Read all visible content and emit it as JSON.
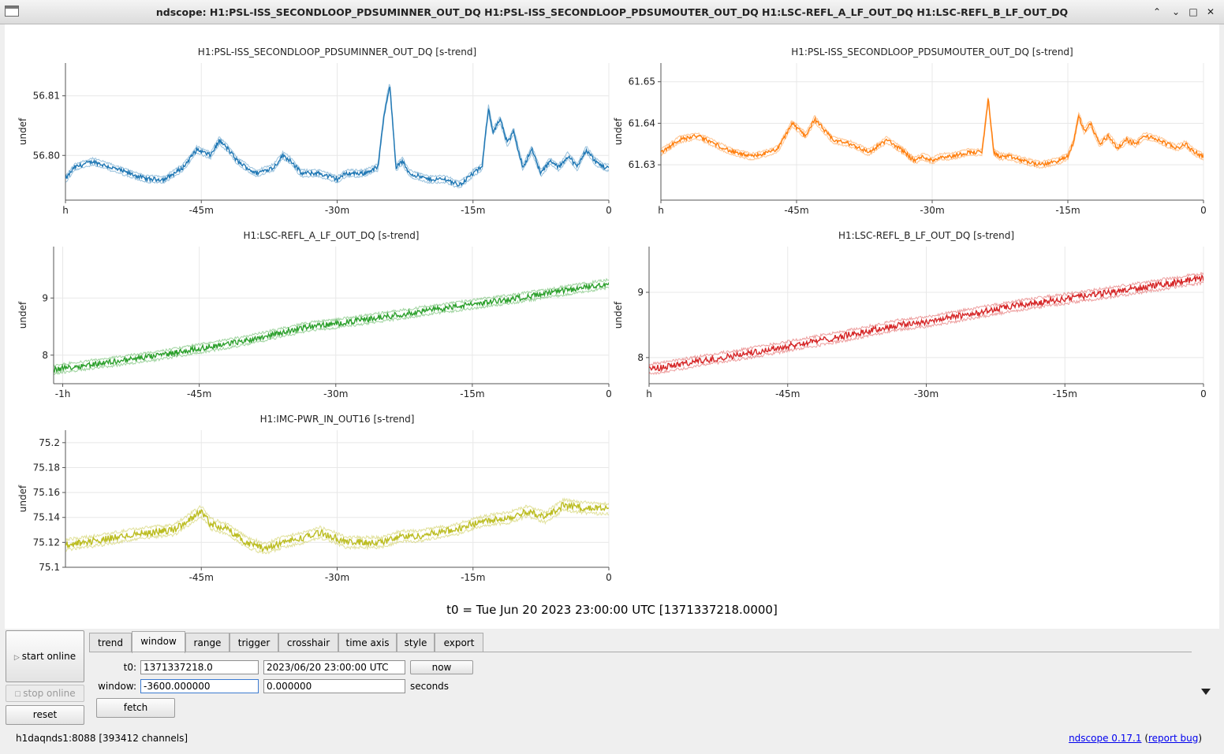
{
  "window": {
    "title": "ndscope: H1:PSL-ISS_SECONDLOOP_PDSUMINNER_OUT_DQ H1:PSL-ISS_SECONDLOOP_PDSUMOUTER_OUT_DQ H1:LSC-REFL_A_LF_OUT_DQ H1:LSC-REFL_B_LF_OUT_DQ",
    "buttons": {
      "minimize": "⌃",
      "restore": "⌄",
      "maximize": "□",
      "close": "✕"
    }
  },
  "t0_label": "t0 = Tue Jun 20 2023 23:00:00 UTC [1371337218.0000]",
  "controls": {
    "start_online": "start online",
    "stop_online": "stop online",
    "reset": "reset",
    "tabs": [
      "trend",
      "window",
      "range",
      "trigger",
      "crosshair",
      "time axis",
      "style",
      "export"
    ],
    "active_tab": "window",
    "t0_label": "t0:",
    "t0_gps": "1371337218.0",
    "t0_utc": "2023/06/20 23:00:00 UTC",
    "now": "now",
    "window_label": "window:",
    "window_start": "-3600.000000",
    "window_end": "0.000000",
    "seconds": "seconds",
    "fetch": "fetch"
  },
  "status": {
    "server": "h1daqnds1:8088  [393412 channels]",
    "version": "ndscope 0.17.1",
    "report_open": "(",
    "report_bug": "report bug",
    "report_close": ")"
  },
  "chart_data": [
    {
      "type": "line",
      "title": "H1:PSL-ISS_SECONDLOOP_PDSUMINNER_OUT_DQ [s-trend]",
      "ylabel": "undef",
      "color": "#1f77b4",
      "x_ticks": [
        {
          "v": -60,
          "label": "h"
        },
        {
          "v": -45,
          "label": "-45m"
        },
        {
          "v": -30,
          "label": "-30m"
        },
        {
          "v": -15,
          "label": "-15m"
        },
        {
          "v": 0,
          "label": "0"
        }
      ],
      "xlim": [
        -60,
        0
      ],
      "y_ticks": [
        56.8,
        56.81
      ],
      "y_tick_labels": [
        "56.80",
        "56.81"
      ],
      "ylim": [
        56.7925,
        56.8155
      ],
      "x": [
        -60,
        -59,
        -57,
        -55,
        -53,
        -51,
        -49,
        -47,
        -45.5,
        -44,
        -43,
        -42,
        -41,
        -39,
        -37,
        -36,
        -35,
        -34,
        -32,
        -30,
        -29,
        -27,
        -25.5,
        -24.8,
        -24.2,
        -23.5,
        -22.8,
        -22,
        -20,
        -18,
        -16.5,
        -15,
        -14,
        -13.3,
        -12.8,
        -12,
        -11.2,
        -10.5,
        -9.5,
        -8.5,
        -7.5,
        -6.5,
        -5.5,
        -4.5,
        -3.5,
        -2.5,
        -1.5,
        -0.5,
        0
      ],
      "y": [
        56.796,
        56.798,
        56.799,
        56.798,
        56.797,
        56.796,
        56.796,
        56.798,
        56.801,
        56.8,
        56.8025,
        56.801,
        56.799,
        56.797,
        56.798,
        56.8,
        56.799,
        56.797,
        56.797,
        56.796,
        56.797,
        56.797,
        56.798,
        56.807,
        56.812,
        56.798,
        56.799,
        56.797,
        56.796,
        56.796,
        56.795,
        56.797,
        56.798,
        56.808,
        56.804,
        56.806,
        56.802,
        56.804,
        56.798,
        56.801,
        56.797,
        56.799,
        56.798,
        56.8,
        56.798,
        56.801,
        56.799,
        56.798,
        56.798
      ],
      "noise": 0.0006
    },
    {
      "type": "line",
      "title": "H1:PSL-ISS_SECONDLOOP_PDSUMOUTER_OUT_DQ [s-trend]",
      "ylabel": "undef",
      "color": "#ff7f0e",
      "x_ticks": [
        {
          "v": -60,
          "label": "h"
        },
        {
          "v": -45,
          "label": "-45m"
        },
        {
          "v": -30,
          "label": "-30m"
        },
        {
          "v": -15,
          "label": "-15m"
        },
        {
          "v": 0,
          "label": "0"
        }
      ],
      "xlim": [
        -60,
        0
      ],
      "y_ticks": [
        61.63,
        61.64,
        61.65
      ],
      "y_tick_labels": [
        "61.63",
        "61.64",
        "61.65"
      ],
      "ylim": [
        61.6215,
        61.6545
      ],
      "x": [
        -60,
        -58,
        -56,
        -54,
        -52,
        -50,
        -48,
        -47,
        -45.5,
        -44,
        -43,
        -41,
        -39,
        -38,
        -37,
        -35,
        -33,
        -32,
        -31,
        -30,
        -29,
        -28,
        -26,
        -24.5,
        -23.8,
        -23.2,
        -22.5,
        -21.5,
        -20,
        -18,
        -16,
        -15,
        -14.3,
        -13.8,
        -13.2,
        -12.5,
        -11.5,
        -10.5,
        -9.5,
        -8.5,
        -7.5,
        -6.5,
        -5,
        -3,
        -2,
        -1,
        0
      ],
      "y": [
        61.633,
        61.636,
        61.637,
        61.635,
        61.633,
        61.632,
        61.633,
        61.634,
        61.64,
        61.637,
        61.641,
        61.636,
        61.635,
        61.634,
        61.633,
        61.636,
        61.633,
        61.631,
        61.632,
        61.631,
        61.632,
        61.632,
        61.633,
        61.633,
        61.646,
        61.633,
        61.632,
        61.632,
        61.631,
        61.63,
        61.631,
        61.632,
        61.636,
        61.642,
        61.638,
        61.64,
        61.635,
        61.637,
        61.634,
        61.636,
        61.635,
        61.637,
        61.636,
        61.634,
        61.635,
        61.633,
        61.632
      ],
      "noise": 0.0008
    },
    {
      "type": "line",
      "title": "H1:LSC-REFL_A_LF_OUT_DQ [s-trend]",
      "ylabel": "undef",
      "color": "#2ca02c",
      "x_ticks": [
        {
          "v": -60,
          "label": "-1h"
        },
        {
          "v": -45,
          "label": "-45m"
        },
        {
          "v": -30,
          "label": "-30m"
        },
        {
          "v": -15,
          "label": "-15m"
        },
        {
          "v": 0,
          "label": "0"
        }
      ],
      "xlim": [
        -61,
        0
      ],
      "y_ticks": [
        8,
        9
      ],
      "y_tick_labels": [
        "8",
        "9"
      ],
      "ylim": [
        7.5,
        9.9
      ],
      "x": [
        -61,
        -50,
        -40,
        -33,
        -30,
        -20,
        -10,
        0
      ],
      "y": [
        7.75,
        7.98,
        8.25,
        8.5,
        8.55,
        8.78,
        9.0,
        9.25
      ],
      "noise": 0.08
    },
    {
      "type": "line",
      "title": "H1:LSC-REFL_B_LF_OUT_DQ [s-trend]",
      "ylabel": "undef",
      "color": "#d62728",
      "x_ticks": [
        {
          "v": -60,
          "label": "h"
        },
        {
          "v": -45,
          "label": "-45m"
        },
        {
          "v": -30,
          "label": "-30m"
        },
        {
          "v": -15,
          "label": "-15m"
        },
        {
          "v": 0,
          "label": "0"
        }
      ],
      "xlim": [
        -60,
        0
      ],
      "y_ticks": [
        8,
        9
      ],
      "y_tick_labels": [
        "8",
        "9"
      ],
      "ylim": [
        7.6,
        9.7
      ],
      "x": [
        -60,
        -50,
        -40,
        -33,
        -30,
        -20,
        -10,
        0
      ],
      "y": [
        7.82,
        8.05,
        8.3,
        8.5,
        8.55,
        8.8,
        9.0,
        9.22
      ],
      "noise": 0.08
    },
    {
      "type": "line",
      "title": "H1:IMC-PWR_IN_OUT16 [s-trend]",
      "ylabel": "undef",
      "color": "#bcbd22",
      "x_ticks": [
        {
          "v": -45,
          "label": "-45m"
        },
        {
          "v": -30,
          "label": "-30m"
        },
        {
          "v": -15,
          "label": "-15m"
        },
        {
          "v": 0,
          "label": "0"
        }
      ],
      "xlim": [
        -60,
        0
      ],
      "y_ticks": [
        75.1,
        75.12,
        75.14,
        75.16,
        75.18,
        75.2
      ],
      "y_tick_labels": [
        "75.1",
        "75.12",
        "75.14",
        "75.16",
        "75.18",
        "75.2"
      ],
      "ylim": [
        75.1,
        75.21
      ],
      "x": [
        -60,
        -56,
        -52,
        -48,
        -46,
        -45,
        -44,
        -42,
        -40,
        -38,
        -36,
        -33,
        -32,
        -31,
        -29,
        -27,
        -25,
        -23,
        -21,
        -19,
        -17,
        -15,
        -13,
        -11,
        -9,
        -7,
        -5,
        -3,
        -1,
        0
      ],
      "y": [
        75.118,
        75.122,
        75.127,
        75.13,
        75.14,
        75.145,
        75.135,
        75.13,
        75.12,
        75.115,
        75.12,
        75.125,
        75.128,
        75.126,
        75.12,
        75.12,
        75.12,
        75.125,
        75.125,
        75.128,
        75.13,
        75.135,
        75.138,
        75.14,
        75.145,
        75.14,
        75.15,
        75.148,
        75.147,
        75.147
      ],
      "noise": 0.0045
    }
  ]
}
